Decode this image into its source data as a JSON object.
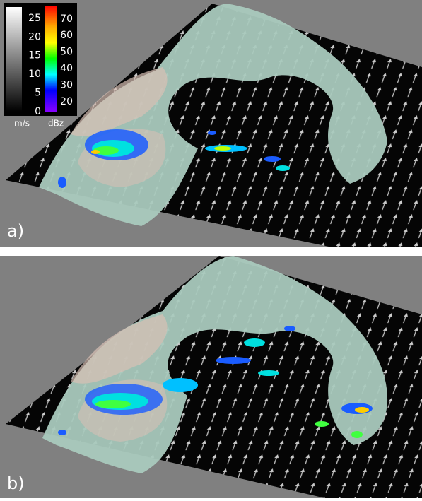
{
  "legend": {
    "speed": {
      "ticks": [
        25,
        20,
        15,
        10,
        5,
        0
      ],
      "range": [
        0,
        28
      ],
      "unit": "m/s"
    },
    "reflectivity": {
      "ticks": [
        70,
        60,
        50,
        40,
        30,
        20
      ],
      "range": [
        14,
        78
      ],
      "unit": "dBz"
    }
  },
  "panels": [
    {
      "label": "a)"
    },
    {
      "label": "b)"
    }
  ]
}
